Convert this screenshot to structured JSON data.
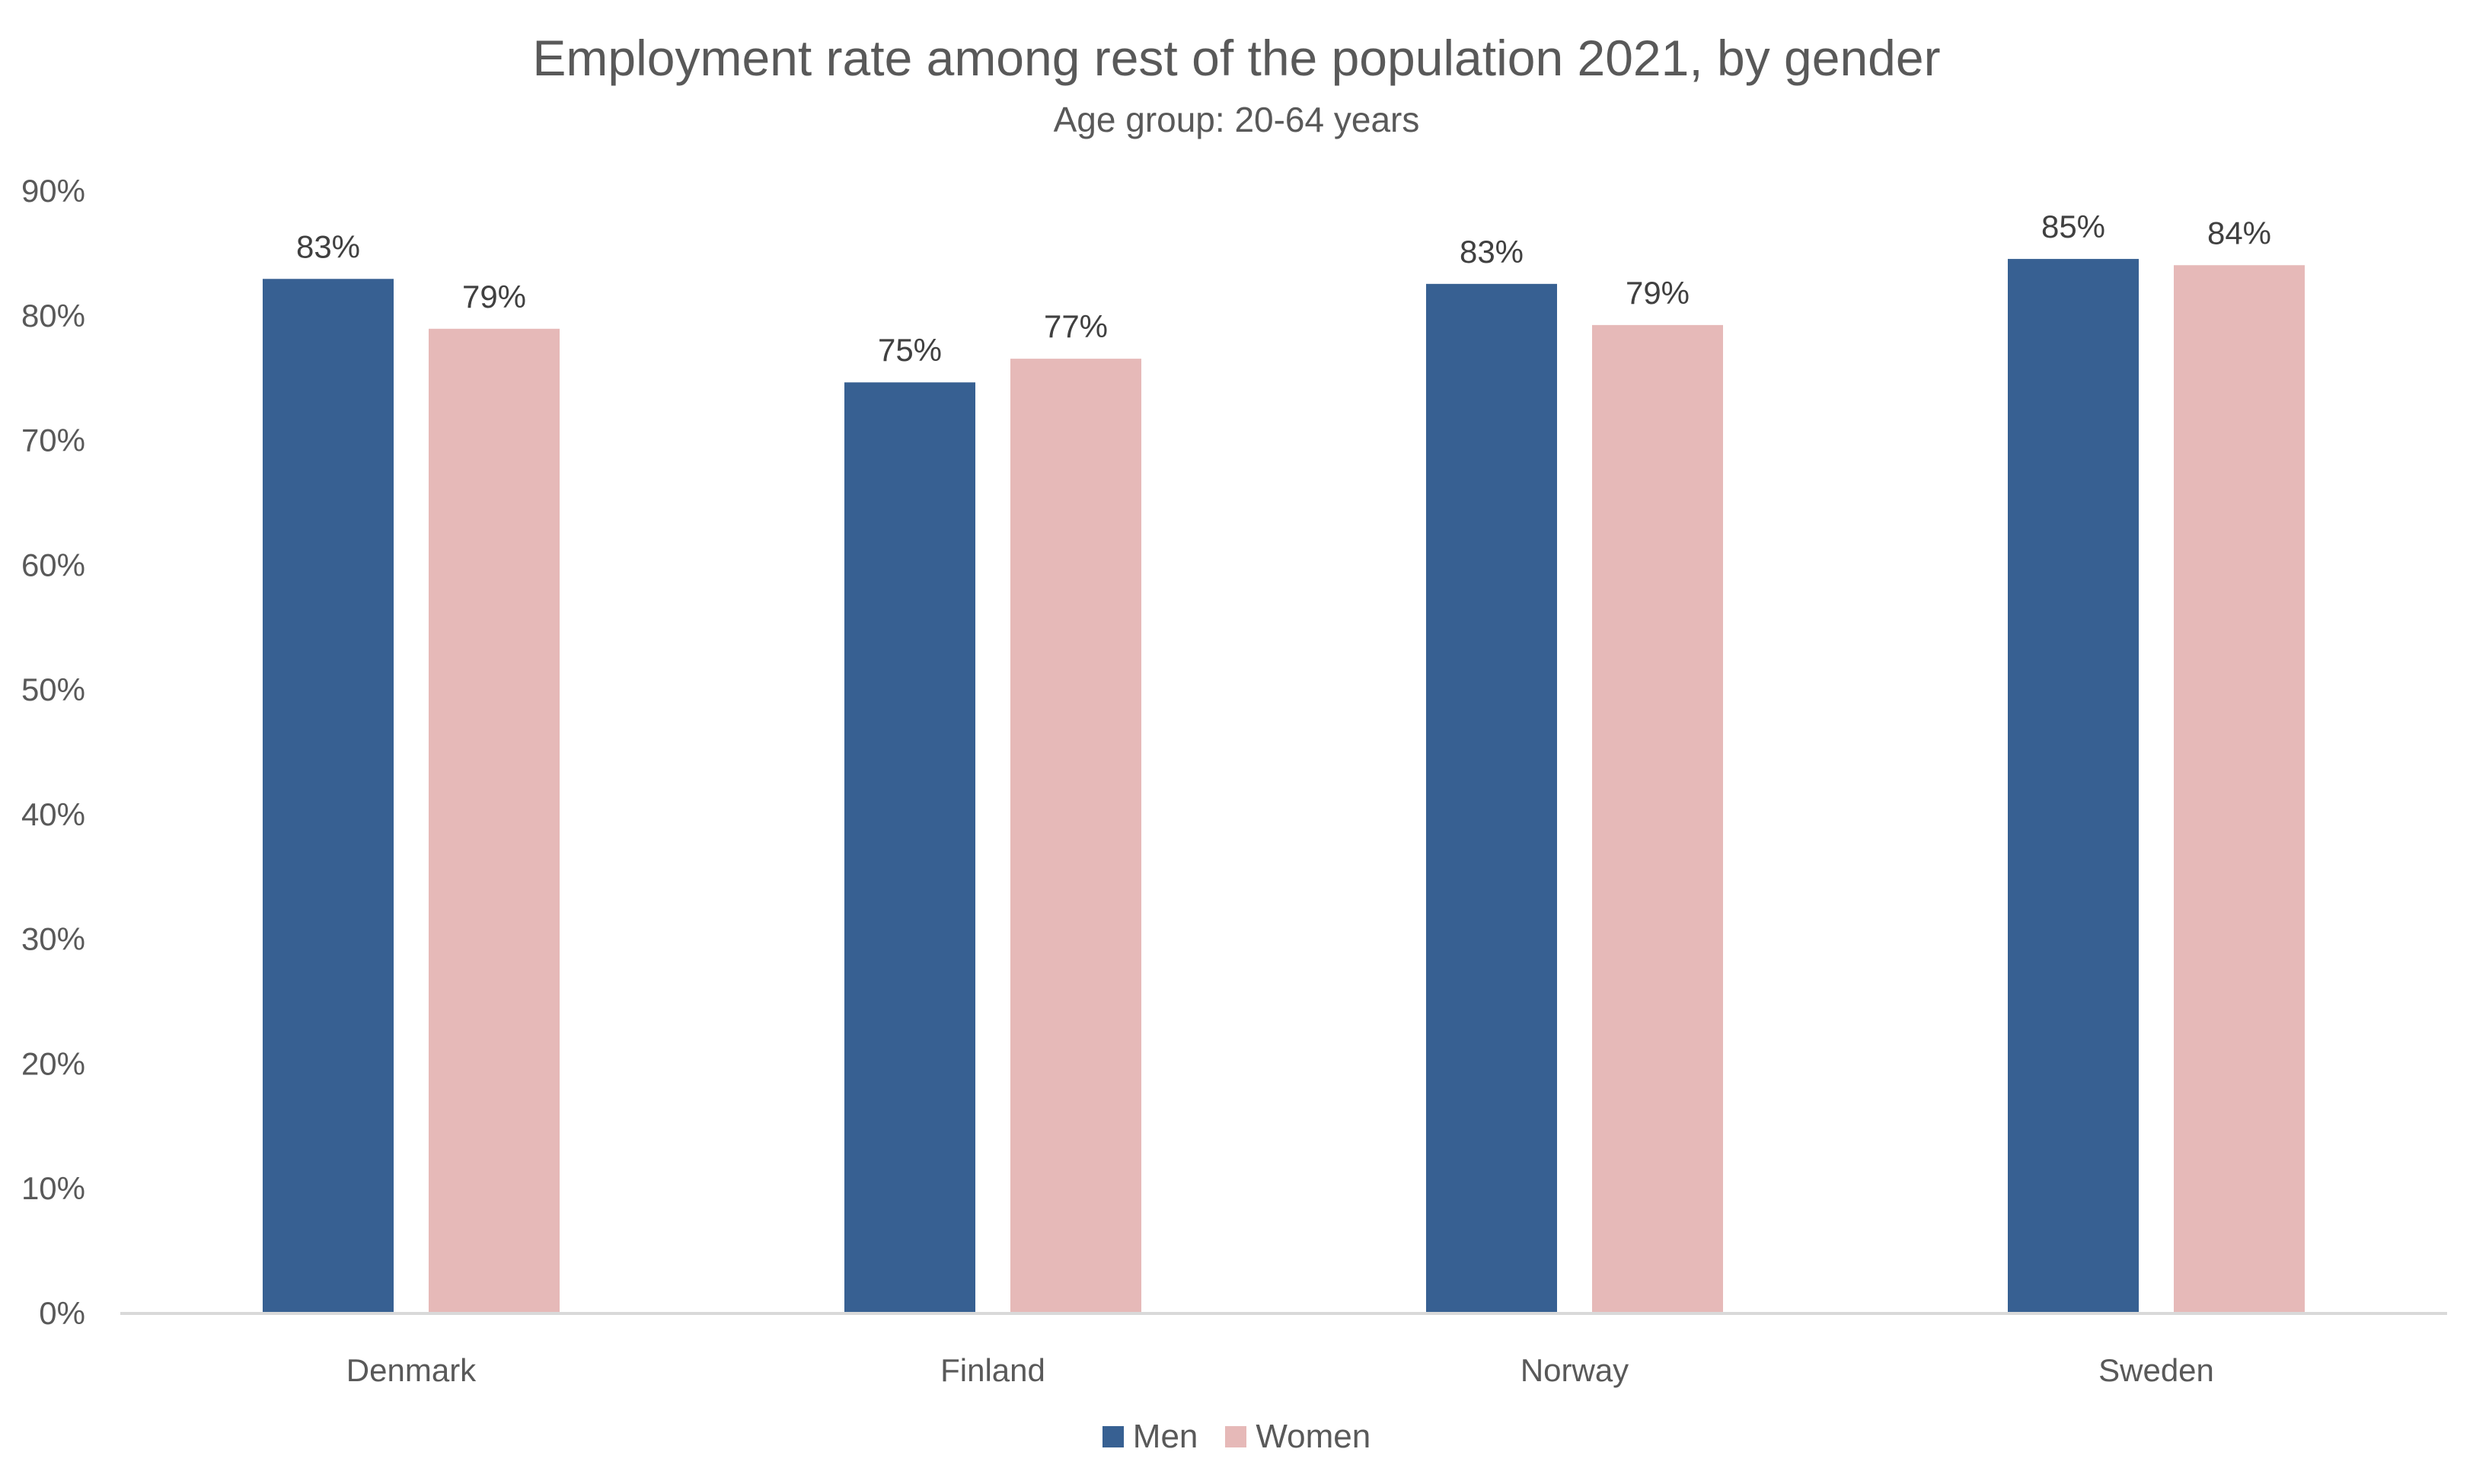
{
  "chart_data": {
    "type": "bar",
    "title": "Employment rate among rest of the population 2021, by gender",
    "subtitle": "Age group: 20-64 years",
    "xlabel": "",
    "ylabel": "",
    "categories": [
      "Denmark",
      "Finland",
      "Norway",
      "Sweden"
    ],
    "series": [
      {
        "name": "Men",
        "color": "#376092",
        "values": [
          82.9,
          74.6,
          82.5,
          84.5
        ],
        "labels": [
          "83%",
          "75%",
          "83%",
          "85%"
        ]
      },
      {
        "name": "Women",
        "color": "#E6B9B8",
        "values": [
          78.9,
          76.5,
          79.2,
          84.0
        ],
        "labels": [
          "79%",
          "77%",
          "79%",
          "84%"
        ]
      }
    ],
    "ylim": [
      0,
      90
    ],
    "yticks": [
      0,
      10,
      20,
      30,
      40,
      50,
      60,
      70,
      80,
      90
    ],
    "ytick_labels": [
      "0%",
      "10%",
      "20%",
      "30%",
      "40%",
      "50%",
      "60%",
      "70%",
      "80%",
      "90%"
    ],
    "grid": false,
    "legend_position": "bottom-center"
  }
}
